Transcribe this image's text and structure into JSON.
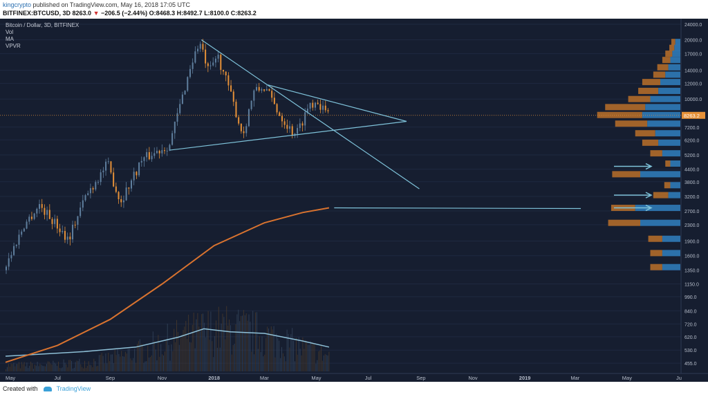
{
  "header": {
    "author": "kingcrypto",
    "published": "published on TradingView.com, May 16, 2018 17:05 UTC",
    "symbol": "BITFINEX:BTCUSD, 3D",
    "last": "8263.0",
    "change": "−206.5 (−2.44%)",
    "open": "O:8468.3",
    "high": "H:8492.7",
    "low": "L:8100.0",
    "close": "C:8263.2"
  },
  "legend": {
    "title": "Bitcoin / Dollar, 3D, BITFINEX",
    "vol": "Vol",
    "ma": "MA",
    "vpvr": "VPVR"
  },
  "footer": {
    "created_with": "Created with",
    "brand": "TradingView"
  },
  "colors": {
    "background": "#161e30",
    "candle_up": "#5f7f9e",
    "candle_down": "#e69138",
    "ma": "#d9732f",
    "volume_ma": "#8fc1d8",
    "trendline": "#7fc3da",
    "vpvr_up": "#2f7ab8",
    "vpvr_down": "#b06a2a",
    "price_tag": "#e69138"
  },
  "chart_data": {
    "type": "candlestick",
    "title": "Bitcoin / Dollar, 3D, BITFINEX",
    "y_scale": "log",
    "ylim": [
      420,
      24000
    ],
    "current_price": "8263.2",
    "x_tick_labels": [
      "May",
      "Jul",
      "Sep",
      "Nov",
      "2018",
      "Mar",
      "May",
      "Jul",
      "Sep",
      "Nov",
      "2019",
      "Mar",
      "May",
      "Ju"
    ],
    "y_tick_labels": [
      "24000.0",
      "20000.0",
      "17000.0",
      "14000.0",
      "12000.0",
      "10000.0",
      "7200.0",
      "6200.0",
      "5200.0",
      "4400.0",
      "3800.0",
      "3200.0",
      "2700.0",
      "2300.0",
      "1900.0",
      "1600.0",
      "1350.0",
      "1150.0",
      "990.0",
      "840.0",
      "720.0",
      "620.0",
      "530.0",
      "455.0"
    ],
    "price_path": [
      [
        "2017-05-01",
        1350
      ],
      [
        "2017-05-25",
        2300
      ],
      [
        "2017-06-12",
        2900
      ],
      [
        "2017-07-16",
        1950
      ],
      [
        "2017-08-05",
        3200
      ],
      [
        "2017-08-31",
        4700
      ],
      [
        "2017-09-15",
        3000
      ],
      [
        "2017-10-10",
        4900
      ],
      [
        "2017-11-12",
        5900
      ],
      [
        "2017-12-07",
        15000
      ],
      [
        "2017-12-17",
        19500
      ],
      [
        "2017-12-28",
        13500
      ],
      [
        "2018-01-07",
        16800
      ],
      [
        "2018-01-20",
        11500
      ],
      [
        "2018-02-06",
        6500
      ],
      [
        "2018-02-18",
        10800
      ],
      [
        "2018-03-04",
        11500
      ],
      [
        "2018-03-20",
        8500
      ],
      [
        "2018-04-05",
        6800
      ],
      [
        "2018-04-12",
        6900
      ],
      [
        "2018-04-25",
        9500
      ],
      [
        "2018-05-05",
        9800
      ],
      [
        "2018-05-16",
        8263
      ]
    ],
    "moving_average": [
      [
        "2017-05-01",
        460
      ],
      [
        "2017-07-01",
        560
      ],
      [
        "2017-09-01",
        760
      ],
      [
        "2017-11-01",
        1150
      ],
      [
        "2018-01-01",
        1800
      ],
      [
        "2018-03-01",
        2350
      ],
      [
        "2018-04-15",
        2650
      ],
      [
        "2018-05-16",
        2800
      ]
    ],
    "volume_ma": [
      [
        "2017-05-01",
        0.2
      ],
      [
        "2017-08-01",
        0.26
      ],
      [
        "2017-10-01",
        0.32
      ],
      [
        "2017-11-20",
        0.45
      ],
      [
        "2017-12-20",
        0.56
      ],
      [
        "2018-01-20",
        0.52
      ],
      [
        "2018-03-01",
        0.5
      ],
      [
        "2018-04-15",
        0.4
      ],
      [
        "2018-05-16",
        0.32
      ]
    ],
    "trendlines": [
      {
        "from": [
          "2017-12-17",
          20000
        ],
        "to": [
          "2018-08-30",
          3500
        ]
      },
      {
        "from": [
          "2017-11-10",
          5500
        ],
        "to": [
          "2018-08-15",
          7700
        ]
      },
      {
        "from": [
          "2018-03-05",
          11800
        ],
        "to": [
          "2018-08-15",
          7700
        ]
      }
    ],
    "vpvr": [
      {
        "price": 19500,
        "up": 0.05,
        "down": 0.04
      },
      {
        "price": 18200,
        "up": 0.06,
        "down": 0.05
      },
      {
        "price": 17000,
        "up": 0.08,
        "down": 0.07
      },
      {
        "price": 15800,
        "up": 0.1,
        "down": 0.08
      },
      {
        "price": 14500,
        "up": 0.12,
        "down": 0.11
      },
      {
        "price": 13300,
        "up": 0.15,
        "down": 0.12
      },
      {
        "price": 12200,
        "up": 0.2,
        "down": 0.18
      },
      {
        "price": 11000,
        "up": 0.22,
        "down": 0.2
      },
      {
        "price": 10000,
        "up": 0.3,
        "down": 0.22
      },
      {
        "price": 9100,
        "up": 0.35,
        "down": 0.4
      },
      {
        "price": 8300,
        "up": 0.38,
        "down": 0.45
      },
      {
        "price": 7500,
        "up": 0.33,
        "down": 0.32
      },
      {
        "price": 6700,
        "up": 0.25,
        "down": 0.2
      },
      {
        "price": 6000,
        "up": 0.22,
        "down": 0.16
      },
      {
        "price": 5300,
        "up": 0.18,
        "down": 0.12
      },
      {
        "price": 4700,
        "up": 0.1,
        "down": 0.05
      },
      {
        "price": 4150,
        "up": 0.4,
        "down": 0.28
      },
      {
        "price": 3650,
        "up": 0.1,
        "down": 0.06
      },
      {
        "price": 3250,
        "up": 0.12,
        "down": 0.15
      },
      {
        "price": 2800,
        "up": 0.45,
        "down": 0.24
      },
      {
        "price": 2350,
        "up": 0.4,
        "down": 0.32
      },
      {
        "price": 1950,
        "up": 0.18,
        "down": 0.14
      },
      {
        "price": 1650,
        "up": 0.18,
        "down": 0.12
      },
      {
        "price": 1400,
        "up": 0.18,
        "down": 0.12
      }
    ],
    "annotation_arrows": [
      4550,
      3250,
      2800
    ]
  }
}
